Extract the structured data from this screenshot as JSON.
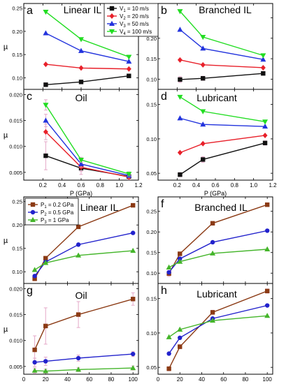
{
  "colors": {
    "s1": "#111111",
    "s2": "#e8202a",
    "s3": "#2233dd",
    "s4": "#22dd22",
    "pa": "#8b3a14",
    "pb": "#2222cc",
    "pc": "#44b52a",
    "err": "#e4a8c8"
  },
  "legends": {
    "top": {
      "entries": [
        {
          "sub": "1",
          "pre": "V",
          "value": " = 10 m/s",
          "marker": "square",
          "color": "#111111"
        },
        {
          "sub": "2",
          "pre": "V",
          "value": " = 20 m/s",
          "marker": "diamond",
          "color": "#e8202a"
        },
        {
          "sub": "3",
          "pre": "V",
          "value": " = 50 m/s",
          "marker": "triangle-up",
          "color": "#2233dd"
        },
        {
          "sub": "4",
          "pre": "V",
          "value": " = 100 m/s",
          "marker": "triangle-down",
          "color": "#22dd22"
        }
      ]
    },
    "bottom": {
      "entries": [
        {
          "sub": "1",
          "pre": "P",
          "value": " = 0.2 GPa",
          "marker": "square",
          "color": "#8b3a14"
        },
        {
          "sub": "2",
          "pre": "P",
          "value": " = 0.5 GPa",
          "marker": "circle",
          "color": "#2222cc"
        },
        {
          "sub": "3",
          "pre": "P",
          "value": " = 1 GPa",
          "marker": "triangle-up",
          "color": "#44b52a"
        }
      ]
    }
  },
  "chart_data": [
    {
      "id": "a",
      "type": "line",
      "letter": "a",
      "title": "Linear IL",
      "xlabel": "",
      "ylabel": "µ",
      "xlim": [
        0,
        1.2
      ],
      "ylim": [
        0.075,
        0.26
      ],
      "xticks": [
        0.2,
        0.4,
        0.6,
        0.8,
        1.0,
        1.2
      ],
      "xtick_labels": [
        "",
        "",
        "",
        "",
        "",
        ""
      ],
      "yticks": [
        0.1,
        0.15,
        0.2,
        0.25
      ],
      "ytick_labels": [
        "0.10",
        "0.15",
        "0.20",
        "0.25"
      ],
      "x": [
        0.23,
        0.6,
        1.1
      ],
      "series": [
        {
          "key": "s1",
          "marker": "square",
          "values": [
            0.085,
            0.091,
            0.104
          ],
          "err": [
            0.004,
            0.003,
            0.003
          ]
        },
        {
          "key": "s2",
          "marker": "diamond",
          "values": [
            0.129,
            0.121,
            0.119
          ],
          "err": [
            0,
            0,
            0
          ]
        },
        {
          "key": "s3",
          "marker": "triangle-up",
          "values": [
            0.196,
            0.158,
            0.135
          ],
          "err": [
            0,
            0,
            0
          ]
        },
        {
          "key": "s4",
          "marker": "triangle-down",
          "values": [
            0.242,
            0.183,
            0.145
          ],
          "err": [
            0,
            0,
            0
          ]
        }
      ]
    },
    {
      "id": "b",
      "type": "line",
      "letter": "b",
      "title": "Branched IL",
      "xlabel": "",
      "ylabel": "",
      "xlim": [
        0,
        1.2
      ],
      "ylim": [
        0.075,
        0.285
      ],
      "xticks": [
        0.2,
        0.4,
        0.6,
        0.8,
        1.0,
        1.2
      ],
      "xtick_labels": [
        "",
        "",
        "",
        "",
        "",
        ""
      ],
      "yticks": [
        0.1,
        0.15,
        0.2,
        0.25
      ],
      "ytick_labels": [
        "0.10",
        "0.15",
        "0.20",
        "0.25"
      ],
      "x": [
        0.23,
        0.47,
        1.1
      ],
      "series": [
        {
          "key": "s1",
          "marker": "square",
          "values": [
            0.099,
            0.102,
            0.114
          ],
          "err": [
            0.007,
            0.005,
            0.004
          ]
        },
        {
          "key": "s2",
          "marker": "diamond",
          "values": [
            0.147,
            0.135,
            0.128
          ],
          "err": [
            0,
            0,
            0
          ]
        },
        {
          "key": "s3",
          "marker": "triangle-up",
          "values": [
            0.221,
            0.175,
            0.148
          ],
          "err": [
            0,
            0,
            0
          ]
        },
        {
          "key": "s4",
          "marker": "triangle-down",
          "values": [
            0.266,
            0.203,
            0.158
          ],
          "err": [
            0,
            0,
            0
          ]
        }
      ]
    },
    {
      "id": "c",
      "type": "line",
      "letter": "c",
      "title": "Oil",
      "xlabel": "P (GPa)",
      "ylabel": "µ",
      "xlim": [
        0,
        1.2
      ],
      "ylim": [
        0.0035,
        0.021
      ],
      "xticks": [
        0.2,
        0.4,
        0.6,
        0.8,
        1.0,
        1.2
      ],
      "xtick_labels": [
        "0.2",
        "0.4",
        "0.6",
        "0.8",
        "1.0",
        "1.2"
      ],
      "yticks": [
        0.005,
        0.01,
        0.015,
        0.02
      ],
      "ytick_labels": [
        "0.005",
        "0.010",
        "0.015",
        "0.020"
      ],
      "x": [
        0.23,
        0.6,
        1.1
      ],
      "series": [
        {
          "key": "s1",
          "marker": "square",
          "values": [
            0.0082,
            0.0058,
            0.0042
          ],
          "err": [
            0.0027,
            0.0012,
            0.0006
          ]
        },
        {
          "key": "s2",
          "marker": "diamond",
          "values": [
            0.0128,
            0.006,
            0.0041
          ],
          "err": [
            0.0015,
            0.0008,
            0.0004
          ]
        },
        {
          "key": "s3",
          "marker": "triangle-up",
          "values": [
            0.015,
            0.0066,
            0.0044
          ],
          "err": [
            0.0012,
            0.0006,
            0.0004
          ]
        },
        {
          "key": "s4",
          "marker": "triangle-down",
          "values": [
            0.018,
            0.0074,
            0.0047
          ],
          "err": [
            0.001,
            0.0005,
            0.0004
          ]
        }
      ]
    },
    {
      "id": "d",
      "type": "line",
      "letter": "d",
      "title": "Lubricant",
      "xlabel": "P (GPa)",
      "ylabel": "",
      "xlim": [
        0,
        1.2
      ],
      "ylim": [
        0.04,
        0.172
      ],
      "xticks": [
        0.2,
        0.4,
        0.6,
        0.8,
        1.0,
        1.2
      ],
      "xtick_labels": [
        "0.2",
        "0.4",
        "0.6",
        "0.8",
        "1.0",
        "1.2"
      ],
      "yticks": [
        0.05,
        0.1,
        0.15
      ],
      "ytick_labels": [
        "0.05",
        "0.10",
        "0.15"
      ],
      "x": [
        0.23,
        0.47,
        1.12
      ],
      "series": [
        {
          "key": "s1",
          "marker": "square",
          "values": [
            0.048,
            0.07,
            0.094
          ],
          "err": [
            0.003,
            0.004,
            0.003
          ]
        },
        {
          "key": "s2",
          "marker": "diamond",
          "values": [
            0.08,
            0.093,
            0.105
          ],
          "err": [
            0,
            0,
            0
          ]
        },
        {
          "key": "s3",
          "marker": "triangle-up",
          "values": [
            0.13,
            0.121,
            0.118
          ],
          "err": [
            0,
            0,
            0
          ]
        },
        {
          "key": "s4",
          "marker": "triangle-down",
          "values": [
            0.161,
            0.14,
            0.125
          ],
          "err": [
            0,
            0,
            0
          ]
        }
      ]
    },
    {
      "id": "e",
      "type": "line",
      "letter": "e",
      "title": "Linear IL",
      "xlabel": "",
      "ylabel": "µ",
      "xlim": [
        0,
        105
      ],
      "ylim": [
        0.075,
        0.26
      ],
      "xticks": [
        0,
        20,
        40,
        60,
        80,
        100
      ],
      "xtick_labels": [
        "",
        "",
        "",
        "",
        "",
        ""
      ],
      "yticks": [
        0.1,
        0.15,
        0.2,
        0.25
      ],
      "ytick_labels": [
        "0.10",
        "0.15",
        "0.20",
        "0.25"
      ],
      "x": [
        10,
        20,
        50,
        100
      ],
      "series": [
        {
          "key": "pa",
          "marker": "square",
          "values": [
            0.085,
            0.129,
            0.196,
            0.242
          ],
          "err": [
            0.004,
            0.003,
            0.003,
            0.003
          ]
        },
        {
          "key": "pb",
          "marker": "circle",
          "values": [
            0.091,
            0.121,
            0.158,
            0.183
          ],
          "err": [
            0,
            0,
            0,
            0
          ]
        },
        {
          "key": "pc",
          "marker": "triangle-up",
          "values": [
            0.104,
            0.119,
            0.135,
            0.145
          ],
          "err": [
            0,
            0,
            0,
            0
          ]
        }
      ]
    },
    {
      "id": "f",
      "type": "line",
      "letter": "f",
      "title": "Branched IL",
      "xlabel": "",
      "ylabel": "",
      "xlim": [
        0,
        105
      ],
      "ylim": [
        0.075,
        0.285
      ],
      "xticks": [
        0,
        20,
        40,
        60,
        80,
        100
      ],
      "xtick_labels": [
        "",
        "",
        "",
        "",
        "",
        ""
      ],
      "yticks": [
        0.1,
        0.15,
        0.2,
        0.25
      ],
      "ytick_labels": [
        "0.10",
        "0.15",
        "0.20",
        "0.25"
      ],
      "x": [
        10,
        20,
        50,
        100
      ],
      "series": [
        {
          "key": "pa",
          "marker": "square",
          "values": [
            0.099,
            0.147,
            0.221,
            0.266
          ],
          "err": [
            0.007,
            0.003,
            0.003,
            0.003
          ]
        },
        {
          "key": "pb",
          "marker": "circle",
          "values": [
            0.102,
            0.135,
            0.175,
            0.203
          ],
          "err": [
            0,
            0,
            0,
            0
          ]
        },
        {
          "key": "pc",
          "marker": "triangle-up",
          "values": [
            0.114,
            0.128,
            0.148,
            0.158
          ],
          "err": [
            0,
            0,
            0,
            0
          ]
        }
      ]
    },
    {
      "id": "g",
      "type": "line",
      "letter": "g",
      "title": "Oil",
      "xlabel": "V (m/s)",
      "ylabel": "µ",
      "xlim": [
        0,
        105
      ],
      "ylim": [
        0.0035,
        0.021
      ],
      "xticks": [
        0,
        20,
        40,
        60,
        80,
        100
      ],
      "xtick_labels": [
        "0",
        "20",
        "40",
        "60",
        "80",
        "100"
      ],
      "yticks": [
        0.005,
        0.01,
        0.015,
        0.02
      ],
      "ytick_labels": [
        "0.005",
        "0.010",
        "0.015",
        "0.020"
      ],
      "x": [
        10,
        20,
        50,
        100
      ],
      "series": [
        {
          "key": "pa",
          "marker": "square",
          "values": [
            0.0082,
            0.0128,
            0.015,
            0.018
          ],
          "err": [
            0.0027,
            0.0035,
            0.0025,
            0.0012
          ]
        },
        {
          "key": "pb",
          "marker": "circle",
          "values": [
            0.0058,
            0.006,
            0.0066,
            0.0074
          ],
          "err": [
            0.0008,
            0.0008,
            0.0006,
            0.0005
          ]
        },
        {
          "key": "pc",
          "marker": "triangle-up",
          "values": [
            0.0042,
            0.0041,
            0.0044,
            0.0047
          ],
          "err": [
            0.0005,
            0.0004,
            0.0004,
            0.0004
          ]
        }
      ]
    },
    {
      "id": "h",
      "type": "line",
      "letter": "h",
      "title": "Lubricant",
      "xlabel": "V (m/s)",
      "ylabel": "",
      "xlim": [
        0,
        105
      ],
      "ylim": [
        0.04,
        0.172
      ],
      "xticks": [
        0,
        20,
        40,
        60,
        80,
        100
      ],
      "xtick_labels": [
        "0",
        "20",
        "40",
        "60",
        "80",
        "100"
      ],
      "yticks": [
        0.05,
        0.1,
        0.15
      ],
      "ytick_labels": [
        "0.05",
        "0.10",
        "0.15"
      ],
      "x": [
        10,
        20,
        50,
        100
      ],
      "series": [
        {
          "key": "pa",
          "marker": "square",
          "values": [
            0.048,
            0.08,
            0.13,
            0.161
          ],
          "err": [
            0.003,
            0.003,
            0.003,
            0.003
          ]
        },
        {
          "key": "pb",
          "marker": "circle",
          "values": [
            0.07,
            0.093,
            0.121,
            0.14
          ],
          "err": [
            0,
            0,
            0,
            0
          ]
        },
        {
          "key": "pc",
          "marker": "triangle-up",
          "values": [
            0.094,
            0.105,
            0.118,
            0.125
          ],
          "err": [
            0,
            0,
            0,
            0
          ]
        }
      ]
    }
  ]
}
